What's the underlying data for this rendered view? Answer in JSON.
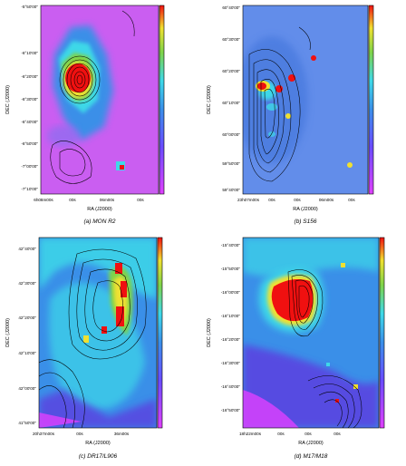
{
  "panels": [
    {
      "id": "a",
      "caption": "(a) MON R2",
      "ylabel": "DEC (J2000)",
      "xlabel": "RA (J2000)",
      "yticks": [
        "-5°50'00\"",
        "-6°10'00\"",
        "-6°20'00\"",
        "-6°30'00\"",
        "-6°40'00\"",
        "-6°50'00\"",
        "-7°00'00\"",
        "-7°10'00\""
      ],
      "xticks": [
        "6h08m00s",
        "00s",
        "06m00s",
        "00s"
      ]
    },
    {
      "id": "b",
      "caption": "(b) S156",
      "ylabel": "DEC (J2000)",
      "xlabel": "RA (J2000)",
      "yticks": [
        "60°40'00\"",
        "60°30'00\"",
        "60°20'00\"",
        "60°10'00\"",
        "60°00'00\"",
        "59°50'00\"",
        "59°40'00\""
      ],
      "xticks": [
        "23h07m00s",
        "00s",
        "00s",
        "06m00s",
        "00s"
      ]
    },
    {
      "id": "c",
      "caption": "(c) DR17/L906",
      "ylabel": "DEC (J2000)",
      "xlabel": "RA (J2000)",
      "yticks": [
        "42°40'00\"",
        "42°30'00\"",
        "42°20'00\"",
        "42°10'00\"",
        "42°00'00\"",
        "41°50'00\""
      ],
      "xticks": [
        "20h37m00s",
        "00s",
        "36m00s"
      ]
    },
    {
      "id": "d",
      "caption": "(d) M17/M18",
      "ylabel": "DEC (J2000)",
      "xlabel": "RA (J2000)",
      "yticks": [
        "-15°40'00\"",
        "-15°50'00\"",
        "-16°00'00\"",
        "-16°10'00\"",
        "-16°20'00\"",
        "-16°30'00\"",
        "-16°40'00\"",
        "-16°50'00\""
      ],
      "xticks": [
        "18h22m00s",
        "00s",
        "00s",
        "00s"
      ]
    }
  ],
  "colors": {
    "background_low": "#e040ff",
    "mid": "#3a8fe8",
    "cyan": "#3ed8e8",
    "green": "#7ed34a",
    "yellow": "#f0e030",
    "peak": "#f01010"
  }
}
